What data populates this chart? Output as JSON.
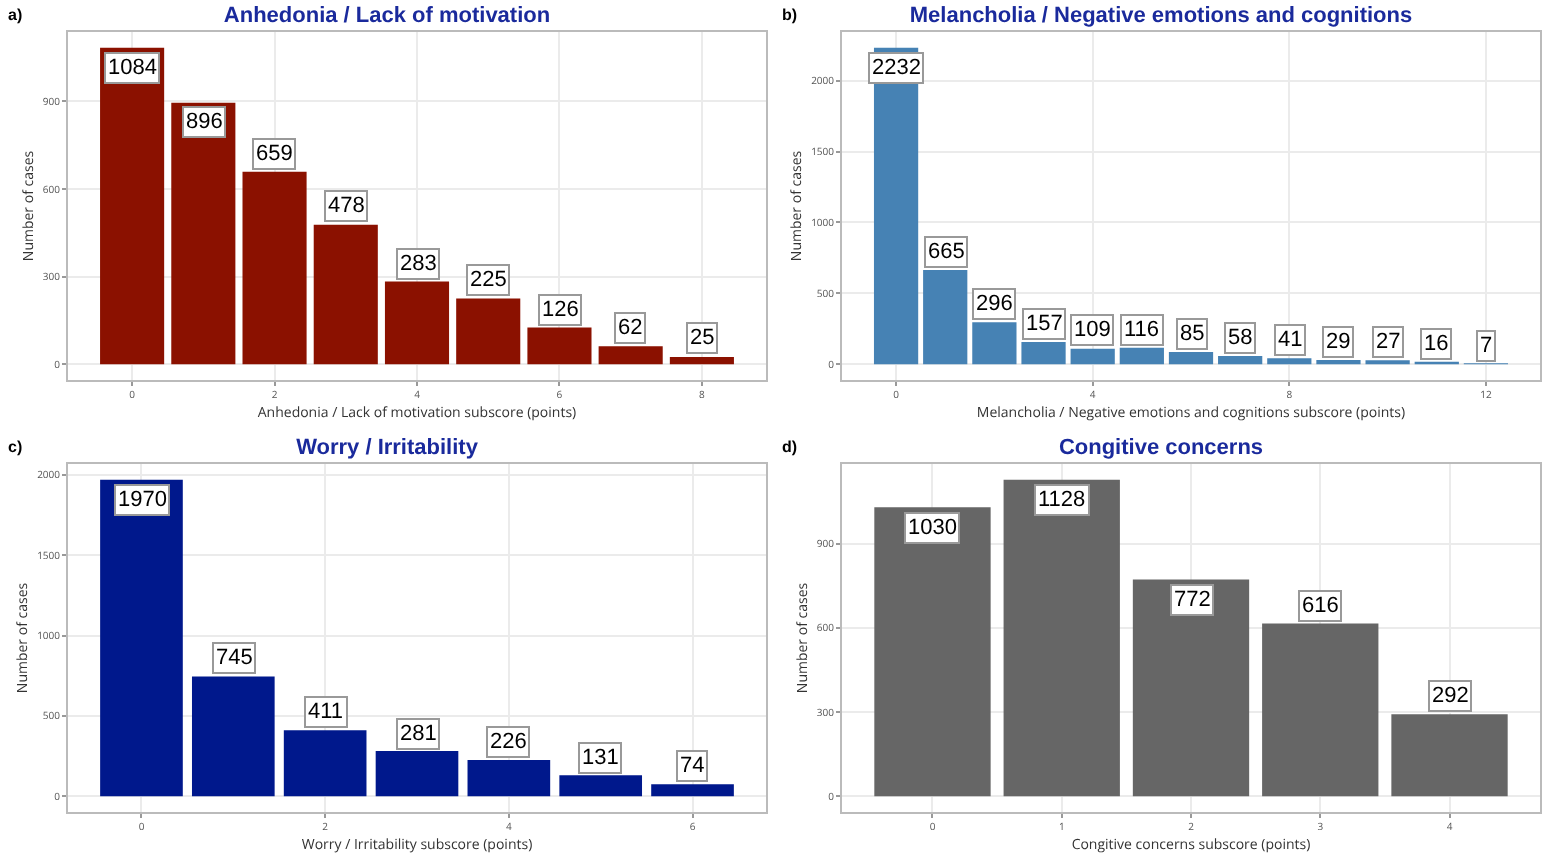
{
  "chart_data": [
    {
      "type": "bar",
      "title": "Anhedonia / Lack of motivation",
      "xlabel": "Anhedonia / Lack of motivation subscore (points)",
      "ylabel": "Number of cases",
      "annotations": [
        "a)"
      ],
      "x": [
        0,
        1,
        2,
        3,
        4,
        5,
        6,
        7,
        8
      ],
      "values": [
        1084,
        896,
        659,
        478,
        283,
        225,
        126,
        62,
        25
      ],
      "color": "#8b1100",
      "xlim": [
        -0.9,
        8.9
      ],
      "xticks": [
        0,
        2,
        4,
        6,
        8
      ],
      "ylim": [
        -54,
        1138
      ],
      "yticks": [
        0,
        300,
        600,
        900
      ],
      "grid": true,
      "data_labels": true
    },
    {
      "type": "bar",
      "title": "Melancholia / Negative emotions and cognitions",
      "xlabel": "Melancholia / Negative emotions and cognitions subscore (points)",
      "ylabel": "Number of cases",
      "annotations": [
        "b)"
      ],
      "x": [
        0,
        1,
        2,
        3,
        4,
        5,
        6,
        7,
        8,
        9,
        10,
        11,
        12
      ],
      "values": [
        2232,
        665,
        296,
        157,
        109,
        116,
        85,
        58,
        41,
        29,
        27,
        16,
        7
      ],
      "color": "#4682b4",
      "xlim": [
        -1.1,
        13.1
      ],
      "xticks": [
        0,
        4,
        8,
        12
      ],
      "ylim": [
        -112,
        2344
      ],
      "yticks": [
        0,
        500,
        1000,
        1500,
        2000
      ],
      "grid": true,
      "data_labels": true
    },
    {
      "type": "bar",
      "title": "Worry / Irritability",
      "xlabel": "Worry / Irritability subscore (points)",
      "ylabel": "Number of cases",
      "annotations": [
        "c)"
      ],
      "x": [
        0,
        1,
        2,
        3,
        4,
        5,
        6
      ],
      "values": [
        1970,
        745,
        411,
        281,
        226,
        131,
        74
      ],
      "color": "#00188c",
      "xlim": [
        -0.8,
        6.8
      ],
      "xticks": [
        0,
        2,
        4,
        6
      ],
      "ylim": [
        -98,
        2068
      ],
      "yticks": [
        0,
        500,
        1000,
        1500,
        2000
      ],
      "grid": true,
      "data_labels": true
    },
    {
      "type": "bar",
      "title": "Congitive concerns",
      "xlabel": "Congitive concerns subscore (points)",
      "ylabel": "Number of cases",
      "annotations": [
        "d)"
      ],
      "x": [
        0,
        1,
        2,
        3,
        4
      ],
      "values": [
        1030,
        1128,
        772,
        616,
        292
      ],
      "color": "#666666",
      "xlim": [
        -0.7,
        4.7
      ],
      "xticks": [
        0,
        1,
        2,
        3,
        4
      ],
      "ylim": [
        -56,
        1184
      ],
      "yticks": [
        0,
        300,
        600,
        900
      ],
      "grid": true,
      "data_labels": true
    }
  ]
}
